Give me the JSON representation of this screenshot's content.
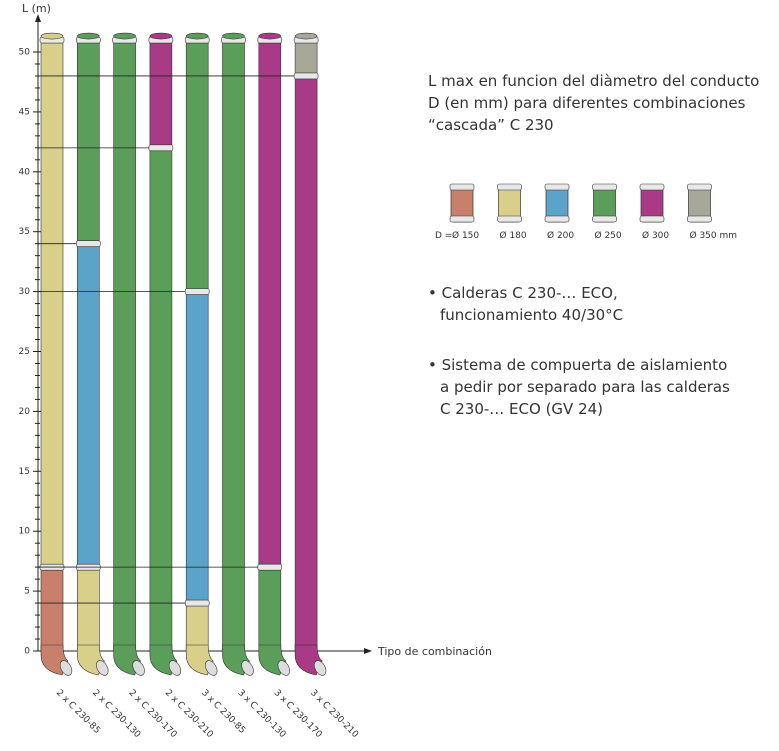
{
  "chart_data": {
    "type": "bar",
    "stacked": true,
    "ylabel": "L (m)",
    "xlabel": "Tipo de combinación",
    "categories": [
      "2 x C 230-85",
      "2 x C 230-130",
      "2 x C 230-170",
      "2 x C 230-210",
      "3 x C 230-85",
      "3 x C 230-130",
      "3 x C 230-170",
      "3 x C 230-210"
    ],
    "legend_prefix": "D =",
    "series": [
      {
        "name": "Ø 150",
        "color": "#c9806a",
        "values": [
          7,
          0,
          0,
          0,
          0,
          0,
          0,
          0
        ]
      },
      {
        "name": "Ø 180",
        "color": "#d8cf8a",
        "values": [
          44,
          7,
          0,
          0,
          4,
          0,
          0,
          0
        ]
      },
      {
        "name": "Ø 200",
        "color": "#5ba3c8",
        "values": [
          0,
          27,
          0,
          0,
          26,
          0,
          0,
          0
        ]
      },
      {
        "name": "Ø 250",
        "color": "#5a9e5a",
        "values": [
          0,
          17,
          51,
          42,
          21,
          51,
          7,
          0
        ]
      },
      {
        "name": "Ø 300",
        "color": "#a83a86",
        "values": [
          0,
          0,
          0,
          9,
          0,
          0,
          44,
          48
        ]
      },
      {
        "name": "Ø 350 mm",
        "color": "#a8a89a",
        "values": [
          0,
          0,
          0,
          0,
          0,
          0,
          0,
          3
        ]
      }
    ],
    "ylim": [
      0,
      50
    ],
    "yticks": [
      0,
      5,
      10,
      15,
      20,
      25,
      30,
      35,
      40,
      45,
      50
    ],
    "yminorticks": [
      1,
      2,
      3,
      4,
      6,
      7,
      8,
      9,
      11,
      12,
      13,
      14,
      16,
      17,
      18,
      19,
      21,
      22,
      23,
      24,
      26,
      27,
      28,
      29,
      31,
      32,
      33,
      34,
      36,
      37,
      38,
      39,
      41,
      42,
      43,
      44,
      46,
      47,
      48,
      49
    ]
  },
  "text": {
    "lines": [
      "L max en funcion del diàmetro del conducto",
      "D (en mm) para diferentes combinaciones",
      "“cascada” C 230"
    ],
    "bullets": [
      [
        "• Calderas C 230-… ECO,",
        "funcionamiento 40/30°C"
      ],
      [
        "• Sistema de compuerta de aislamiento",
        "a pedir por separado para las calderas",
        "C 230-… ECO (GV 24)"
      ]
    ]
  }
}
